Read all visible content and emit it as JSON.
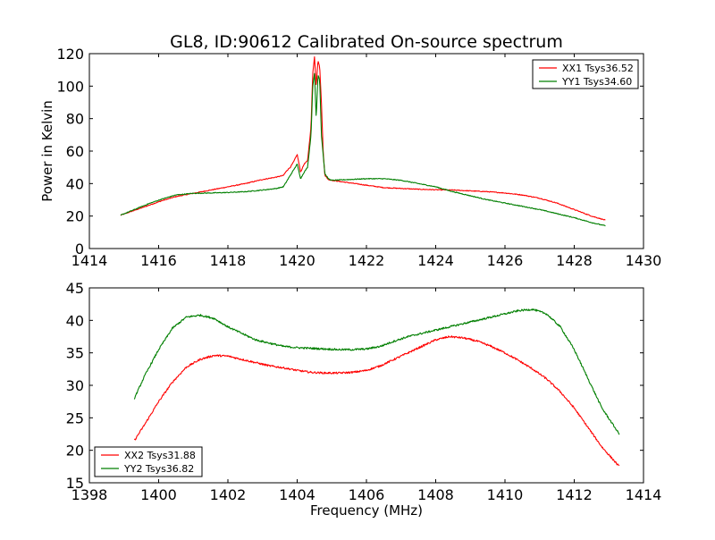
{
  "chart_data": [
    {
      "type": "line",
      "title": "GL8, ID:90612 Calibrated On-source spectrum",
      "xlabel": "",
      "ylabel": "Power in Kelvin",
      "xlim": [
        1414,
        1430
      ],
      "ylim": [
        0,
        120
      ],
      "xticks": [
        1414,
        1416,
        1418,
        1420,
        1422,
        1424,
        1426,
        1428,
        1430
      ],
      "yticks": [
        0,
        20,
        40,
        60,
        80,
        100,
        120
      ],
      "legend_position": "top-right",
      "grid": false,
      "series": [
        {
          "name": "XX1 Tsys36.52",
          "color": "#ff0000",
          "x": [
            1414.9,
            1415.3,
            1415.7,
            1416.1,
            1416.5,
            1417.0,
            1417.5,
            1418.0,
            1418.5,
            1419.0,
            1419.4,
            1419.6,
            1419.7,
            1419.8,
            1419.9,
            1420.0,
            1420.1,
            1420.2,
            1420.3,
            1420.4,
            1420.45,
            1420.5,
            1420.55,
            1420.6,
            1420.65,
            1420.7,
            1420.75,
            1420.8,
            1420.9,
            1421.0,
            1421.5,
            1422.0,
            1422.5,
            1423.0,
            1423.5,
            1424.0,
            1424.5,
            1425.0,
            1425.5,
            1426.0,
            1426.5,
            1427.0,
            1427.5,
            1428.0,
            1428.5,
            1428.9
          ],
          "y": [
            20.5,
            23.5,
            26.5,
            29.5,
            32.0,
            34.0,
            36.0,
            38.0,
            40.0,
            42.5,
            44.0,
            45.0,
            48.0,
            50.0,
            53.5,
            58.0,
            47.0,
            52.0,
            54.0,
            75.0,
            108.0,
            118.0,
            100.0,
            116.0,
            112.0,
            90.0,
            60.0,
            45.0,
            42.5,
            42.0,
            40.5,
            39.0,
            37.5,
            37.0,
            36.5,
            36.2,
            36.0,
            35.5,
            35.0,
            34.2,
            33.0,
            31.0,
            28.0,
            24.0,
            20.0,
            17.5
          ]
        },
        {
          "name": "YY1 Tsys34.60",
          "color": "#007f00",
          "x": [
            1414.9,
            1415.3,
            1415.7,
            1416.1,
            1416.5,
            1417.0,
            1417.5,
            1418.0,
            1418.5,
            1419.0,
            1419.4,
            1419.6,
            1419.8,
            1420.0,
            1420.1,
            1420.2,
            1420.3,
            1420.4,
            1420.45,
            1420.5,
            1420.55,
            1420.6,
            1420.65,
            1420.7,
            1420.8,
            1420.9,
            1421.0,
            1421.5,
            1422.0,
            1422.5,
            1423.0,
            1423.5,
            1424.0,
            1424.5,
            1425.0,
            1425.5,
            1426.0,
            1426.5,
            1427.0,
            1427.5,
            1428.0,
            1428.5,
            1428.9
          ],
          "y": [
            20.5,
            24.0,
            27.5,
            30.5,
            33.0,
            34.0,
            34.2,
            34.5,
            35.0,
            36.0,
            37.0,
            38.0,
            45.0,
            52.0,
            43.0,
            47.0,
            50.0,
            70.0,
            100.0,
            108.0,
            80.0,
            107.0,
            104.0,
            70.0,
            46.0,
            43.0,
            42.0,
            42.5,
            43.0,
            43.0,
            42.0,
            40.0,
            38.0,
            35.0,
            32.5,
            30.0,
            28.0,
            26.0,
            24.0,
            21.5,
            19.0,
            16.0,
            14.0
          ]
        }
      ]
    },
    {
      "type": "line",
      "title": "",
      "xlabel": "Frequency (MHz)",
      "ylabel": "",
      "xlim": [
        1398,
        1414
      ],
      "ylim": [
        15,
        45
      ],
      "xticks": [
        1398,
        1400,
        1402,
        1404,
        1406,
        1408,
        1410,
        1412,
        1414
      ],
      "yticks": [
        15,
        20,
        25,
        30,
        35,
        40,
        45
      ],
      "legend_position": "lower-left",
      "grid": false,
      "series": [
        {
          "name": "XX2 Tsys31.88",
          "color": "#ff0000",
          "x": [
            1399.3,
            1399.6,
            1400.0,
            1400.4,
            1400.8,
            1401.2,
            1401.6,
            1402.0,
            1402.4,
            1402.8,
            1403.2,
            1403.6,
            1404.0,
            1404.4,
            1404.8,
            1405.2,
            1405.6,
            1406.0,
            1406.4,
            1406.8,
            1407.2,
            1407.6,
            1408.0,
            1408.4,
            1408.8,
            1409.2,
            1409.6,
            1410.0,
            1410.4,
            1410.8,
            1411.2,
            1411.6,
            1412.0,
            1412.4,
            1412.8,
            1413.3
          ],
          "y": [
            21.5,
            24.0,
            27.5,
            30.5,
            32.8,
            34.0,
            34.6,
            34.5,
            34.0,
            33.5,
            33.0,
            32.7,
            32.3,
            32.0,
            31.9,
            31.9,
            32.0,
            32.3,
            33.0,
            34.0,
            35.0,
            36.0,
            37.0,
            37.5,
            37.3,
            36.8,
            36.0,
            35.0,
            33.8,
            32.5,
            31.0,
            29.0,
            26.5,
            23.5,
            20.5,
            17.5
          ]
        },
        {
          "name": "YY2 Tsys36.82",
          "color": "#007f00",
          "x": [
            1399.3,
            1399.6,
            1400.0,
            1400.4,
            1400.8,
            1401.2,
            1401.6,
            1402.0,
            1402.4,
            1402.8,
            1403.2,
            1403.6,
            1404.0,
            1404.4,
            1404.8,
            1405.2,
            1405.6,
            1406.0,
            1406.4,
            1406.8,
            1407.2,
            1407.6,
            1408.0,
            1408.4,
            1408.8,
            1409.2,
            1409.6,
            1410.0,
            1410.4,
            1410.8,
            1411.2,
            1411.6,
            1412.0,
            1412.4,
            1412.8,
            1413.3
          ],
          "y": [
            28.0,
            31.5,
            35.5,
            38.8,
            40.5,
            40.8,
            40.3,
            39.0,
            38.0,
            37.0,
            36.5,
            36.0,
            35.8,
            35.7,
            35.6,
            35.5,
            35.5,
            35.6,
            36.0,
            36.8,
            37.5,
            38.0,
            38.5,
            39.0,
            39.5,
            40.0,
            40.5,
            41.0,
            41.5,
            41.7,
            41.0,
            39.0,
            35.5,
            31.0,
            26.5,
            22.5
          ]
        }
      ]
    }
  ]
}
